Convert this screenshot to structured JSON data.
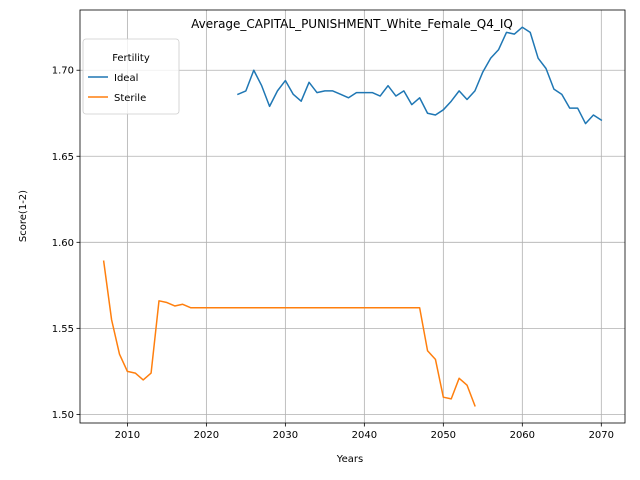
{
  "chart_data": {
    "type": "line",
    "title": "Average_CAPITAL_PUNISHMENT_White_Female_Q4_IQ",
    "xlabel": "Years",
    "ylabel": "Score(1-2)",
    "xlim": [
      2004,
      2073
    ],
    "ylim": [
      1.495,
      1.735
    ],
    "xticks": [
      2010,
      2020,
      2030,
      2040,
      2050,
      2060,
      2070
    ],
    "yticks": [
      1.5,
      1.55,
      1.6,
      1.65,
      1.7
    ],
    "ytick_labels": [
      "1.50",
      "1.55",
      "1.60",
      "1.65",
      "1.70"
    ],
    "grid": true,
    "legend": {
      "title": "Fertility",
      "placement": "top-left"
    },
    "series": [
      {
        "name": "Ideal",
        "color": "#1f77b4",
        "x": [
          2024,
          2025,
          2026,
          2027,
          2028,
          2029,
          2030,
          2031,
          2032,
          2033,
          2034,
          2035,
          2036,
          2037,
          2038,
          2039,
          2040,
          2041,
          2042,
          2043,
          2044,
          2045,
          2046,
          2047,
          2048,
          2049,
          2050,
          2051,
          2052,
          2053,
          2054,
          2055,
          2056,
          2057,
          2058,
          2059,
          2060,
          2061,
          2062,
          2063,
          2064,
          2065,
          2066,
          2067,
          2068,
          2069,
          2070
        ],
        "y": [
          1.686,
          1.688,
          1.7,
          1.691,
          1.679,
          1.688,
          1.694,
          1.686,
          1.682,
          1.693,
          1.687,
          1.688,
          1.688,
          1.686,
          1.684,
          1.687,
          1.687,
          1.687,
          1.685,
          1.691,
          1.685,
          1.688,
          1.68,
          1.684,
          1.675,
          1.674,
          1.677,
          1.682,
          1.688,
          1.683,
          1.688,
          1.699,
          1.707,
          1.712,
          1.722,
          1.721,
          1.725,
          1.722,
          1.707,
          1.701,
          1.689,
          1.686,
          1.678,
          1.678,
          1.669,
          1.674,
          1.671
        ]
      },
      {
        "name": "Sterile",
        "color": "#ff7f0e",
        "x": [
          2007,
          2008,
          2009,
          2010,
          2011,
          2012,
          2013,
          2014,
          2015,
          2016,
          2017,
          2018,
          2019,
          2020,
          2021,
          2022,
          2023,
          2024,
          2025,
          2026,
          2027,
          2028,
          2029,
          2030,
          2031,
          2032,
          2033,
          2034,
          2035,
          2036,
          2037,
          2038,
          2039,
          2040,
          2041,
          2042,
          2043,
          2044,
          2045,
          2046,
          2047,
          2048,
          2049,
          2050,
          2051,
          2052,
          2053,
          2054
        ],
        "y": [
          1.589,
          1.555,
          1.535,
          1.525,
          1.524,
          1.52,
          1.524,
          1.566,
          1.565,
          1.563,
          1.564,
          1.562,
          1.562,
          1.562,
          1.562,
          1.562,
          1.562,
          1.562,
          1.562,
          1.562,
          1.562,
          1.562,
          1.562,
          1.562,
          1.562,
          1.562,
          1.562,
          1.562,
          1.562,
          1.562,
          1.562,
          1.562,
          1.562,
          1.562,
          1.562,
          1.562,
          1.562,
          1.562,
          1.562,
          1.562,
          1.562,
          1.537,
          1.532,
          1.51,
          1.509,
          1.521,
          1.517,
          1.505
        ]
      }
    ]
  }
}
